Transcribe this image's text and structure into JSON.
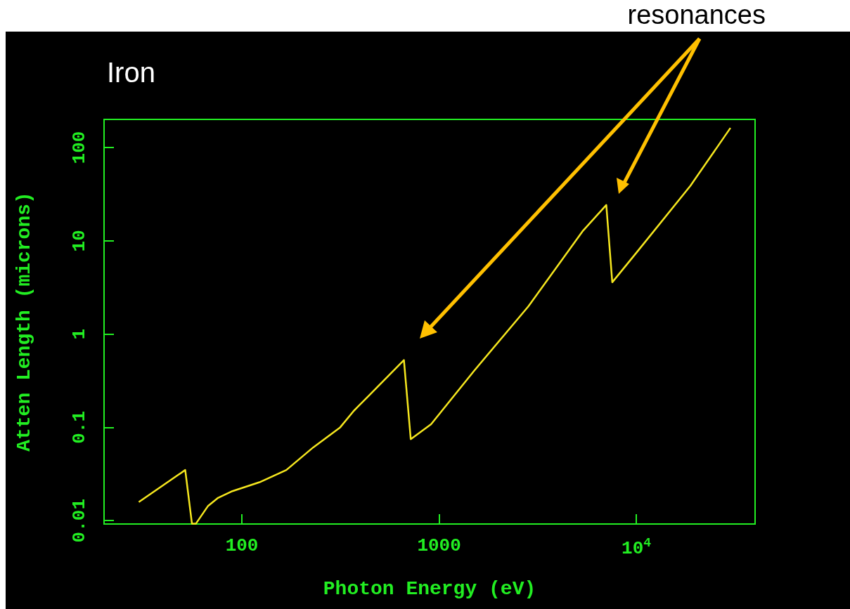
{
  "chart_data": {
    "type": "line",
    "title": "Iron",
    "xlabel": "Photon Energy (eV)",
    "ylabel": "Atten Length (microns)",
    "annotations": [
      "resonances"
    ],
    "log": "xy",
    "grid": false,
    "marker": "none",
    "line_style": "solid",
    "xlim": [
      20,
      40000
    ],
    "ylim": [
      0.0092,
      200
    ],
    "xticks": [
      100,
      1000,
      {
        "value": 10000,
        "label": "10$^{4}$"
      }
    ],
    "yticks": [
      0.01,
      0.1,
      1,
      10,
      100
    ],
    "x": [
      30,
      51.6,
      55.8,
      58.5,
      67.4,
      75.3,
      89.5,
      122.8,
      168,
      230,
      315,
      369,
      432,
      663,
      718,
      910,
      1506,
      2833,
      5330,
      7040,
      7550,
      10000,
      18800,
      30000
    ],
    "series": [
      {
        "color": "#f5e61e",
        "values": [
          0.0158,
          0.0349,
          0.0093,
          0.0093,
          0.0144,
          0.0174,
          0.0207,
          0.0258,
          0.0349,
          0.061,
          0.1,
          0.15,
          0.21,
          0.527,
          0.0748,
          0.108,
          0.405,
          1.98,
          12.6,
          24.2,
          3.59,
          7.44,
          38.9,
          162
        ]
      }
    ]
  }
}
